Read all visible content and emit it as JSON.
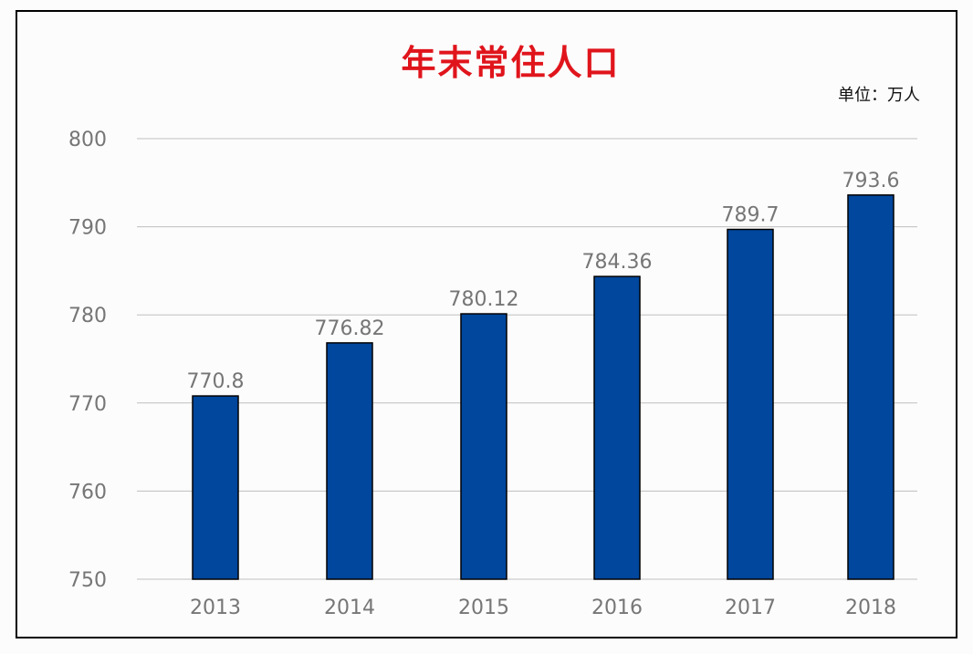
{
  "chart_data": {
    "type": "bar",
    "title": "年末常住人口",
    "unit": "单位：万人",
    "categories": [
      "2013",
      "2014",
      "2015",
      "2016",
      "2017",
      "2018"
    ],
    "values": [
      770.8,
      776.82,
      780.12,
      784.36,
      789.7,
      793.6
    ],
    "value_labels": [
      "770.8",
      "776.82",
      "780.12",
      "784.36",
      "789.7",
      "793.6"
    ],
    "ylim": [
      750,
      800
    ],
    "yticks": [
      "750",
      "760",
      "770",
      "780",
      "790",
      "800"
    ],
    "grid": true,
    "legend": "none",
    "xlabel": "",
    "ylabel": ""
  },
  "colors": {
    "bar": "#00479d",
    "bar_stroke": "#000000",
    "title": "#e0151c",
    "tick_text": "#767676",
    "grid": "#bfbfbf"
  }
}
